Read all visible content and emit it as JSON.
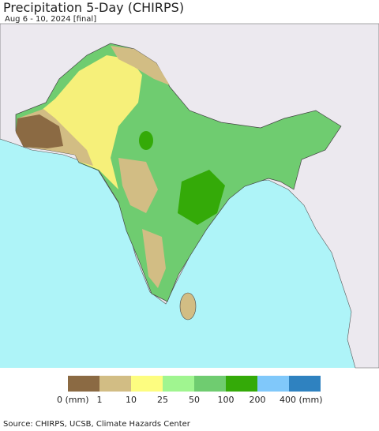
{
  "header": {
    "title": "Precipitation 5-Day (CHIRPS)",
    "subtitle": "Aug 6 - 10, 2024 [final]"
  },
  "legend": {
    "items": [
      {
        "label": "0 (mm)",
        "color": "#8b6a43"
      },
      {
        "label": "1",
        "color": "#d2bd84"
      },
      {
        "label": "10",
        "color": "#fdfd80"
      },
      {
        "label": "25",
        "color": "#a0f590"
      },
      {
        "label": "50",
        "color": "#6fcc70"
      },
      {
        "label": "100",
        "color": "#34aa08"
      },
      {
        "label": "200",
        "color": "#80c8fa"
      },
      {
        "label": "400 (mm)",
        "color": "#2f82c0"
      }
    ]
  },
  "footer": {
    "source": "Source: CHIRPS, UCSB, Climate Hazards Center"
  }
}
